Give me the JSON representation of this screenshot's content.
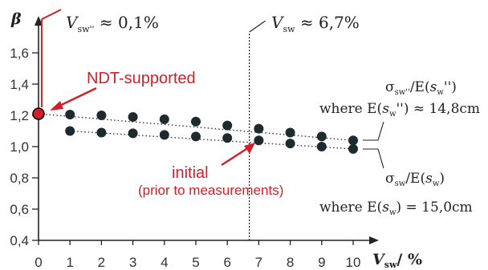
{
  "chart_data": {
    "type": "scatter",
    "x_ticks": [
      "0",
      "1",
      "2",
      "3",
      "4",
      "5",
      "6",
      "7",
      "8",
      "9",
      "10"
    ],
    "y_ticks": [
      "0,4",
      "0,6",
      "0,8",
      "1,0",
      "1,2",
      "1,4",
      "1,6"
    ],
    "xlim": [
      0,
      10.5
    ],
    "ylim": [
      0.4,
      1.7
    ],
    "x_axis_label": {
      "sym": "V",
      "sub": "sw",
      "rest": "/ %"
    },
    "y_axis_label": "β",
    "series": [
      {
        "x": [
          0,
          1,
          2,
          3,
          4,
          5,
          6,
          7,
          8,
          9,
          10
        ],
        "y": [
          1.21,
          1.205,
          1.2,
          1.19,
          1.175,
          1.16,
          1.135,
          1.115,
          1.09,
          1.065,
          1.04
        ]
      },
      {
        "x": [
          1,
          2,
          3,
          4,
          5,
          6,
          7,
          8,
          9,
          10
        ],
        "y": [
          1.1,
          1.09,
          1.085,
          1.075,
          1.065,
          1.055,
          1.04,
          1.02,
          1.0,
          0.985
        ]
      }
    ],
    "highlight_point": {
      "x": 0,
      "y": 1.21,
      "color": "#d0202a"
    },
    "vlines": [
      {
        "x": 0.1,
        "label": {
          "sym": "V",
          "sub": "sw''",
          "rest": " ≈ 0,1%"
        },
        "color": "#d0202a"
      },
      {
        "x": 6.7,
        "label": {
          "sym": "V",
          "sub": "sw",
          "rest": " ≈ 6,7%"
        },
        "color": "#222222"
      }
    ],
    "annotations": {
      "ndt": "NDT-supported",
      "initial": "initial",
      "initial_sub": "(prior to measurements)",
      "upper_ratio": {
        "sigma_sub": "sw''",
        "mid": "/E(",
        "s": "s",
        "s_sub": "w",
        "end": "'')"
      },
      "upper_where": {
        "pre": "where E(",
        "s": "s",
        "s_sub": "w",
        "post": "'') ≈ 14,8cm"
      },
      "lower_ratio": {
        "sigma_sub": "sw",
        "mid": "/E(",
        "s": "s",
        "s_sub": "w",
        "end": ")"
      },
      "lower_where": {
        "pre": "where E(",
        "s": "s",
        "s_sub": "w",
        "post": ") = 15,0cm"
      }
    },
    "colors": {
      "points": "#1d2b2e",
      "highlight": "#d0202a",
      "axis": "#222222"
    },
    "grid": false
  }
}
